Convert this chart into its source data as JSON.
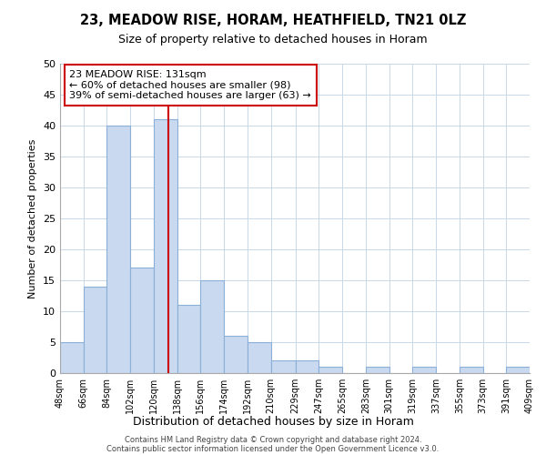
{
  "title": "23, MEADOW RISE, HORAM, HEATHFIELD, TN21 0LZ",
  "subtitle": "Size of property relative to detached houses in Horam",
  "xlabel": "Distribution of detached houses by size in Horam",
  "ylabel": "Number of detached properties",
  "bin_edges": [
    48,
    66,
    84,
    102,
    120,
    138,
    156,
    174,
    192,
    210,
    229,
    247,
    265,
    283,
    301,
    319,
    337,
    355,
    373,
    391,
    409
  ],
  "bin_labels": [
    "48sqm",
    "66sqm",
    "84sqm",
    "102sqm",
    "120sqm",
    "138sqm",
    "156sqm",
    "174sqm",
    "192sqm",
    "210sqm",
    "229sqm",
    "247sqm",
    "265sqm",
    "283sqm",
    "301sqm",
    "319sqm",
    "337sqm",
    "355sqm",
    "373sqm",
    "391sqm",
    "409sqm"
  ],
  "counts": [
    5,
    14,
    40,
    17,
    41,
    11,
    15,
    6,
    5,
    2,
    2,
    1,
    0,
    1,
    0,
    1,
    0,
    1,
    0,
    1
  ],
  "bar_color": "#c9d9f0",
  "bar_edge_color": "#8ab0d8",
  "property_value": 131,
  "vline_color": "#cc0000",
  "annotation_line1": "23 MEADOW RISE: 131sqm",
  "annotation_line2": "← 60% of detached houses are smaller (98)",
  "annotation_line3": "39% of semi-detached houses are larger (63) →",
  "annotation_box_color": "#ffffff",
  "annotation_box_edge": "#cc0000",
  "ylim": [
    0,
    50
  ],
  "yticks": [
    0,
    5,
    10,
    15,
    20,
    25,
    30,
    35,
    40,
    45,
    50
  ],
  "grid_color": "#c8d8e8",
  "bg_color": "#ffffff",
  "footer1": "Contains HM Land Registry data © Crown copyright and database right 2024.",
  "footer2": "Contains public sector information licensed under the Open Government Licence v3.0."
}
